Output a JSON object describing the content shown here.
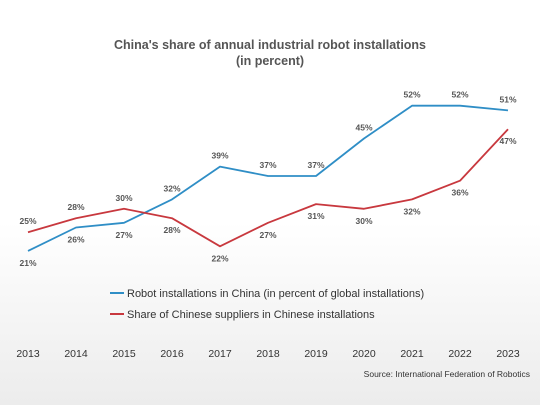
{
  "chart_data": {
    "type": "line",
    "title_line1": "China's share of annual industrial robot installations",
    "title_line2": "(in percent)",
    "x": [
      "2013",
      "2014",
      "2015",
      "2016",
      "2017",
      "2018",
      "2019",
      "2020",
      "2021",
      "2022",
      "2023"
    ],
    "series": [
      {
        "name": "Robot installations in China (in percent of global installations)",
        "color": "#2f8ec6",
        "values": [
          21,
          26,
          27,
          32,
          39,
          37,
          37,
          45,
          52,
          52,
          51
        ]
      },
      {
        "name": "Share of Chinese suppliers in Chinese installations",
        "color": "#c8383e",
        "values": [
          25,
          28,
          30,
          28,
          22,
          27,
          31,
          30,
          32,
          36,
          47
        ]
      }
    ],
    "ylim": [
      18,
      56
    ],
    "grid": false,
    "legend_position": "below-plot"
  },
  "source": "Source: International Federation of Robotics"
}
